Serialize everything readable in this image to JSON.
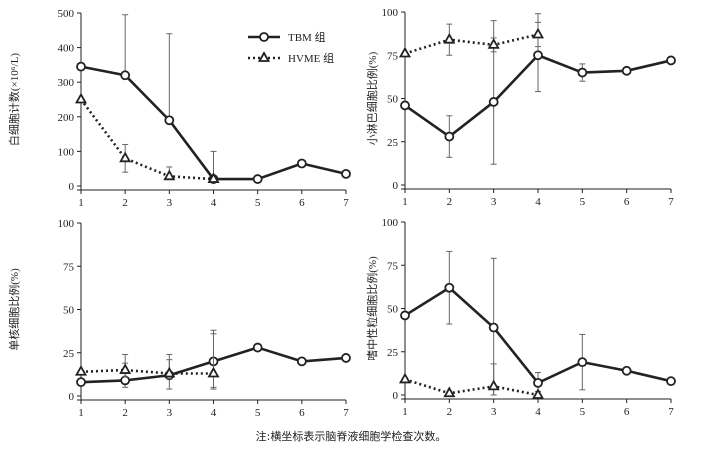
{
  "chart_data": [
    {
      "type": "line",
      "ylabel": "白细胞计数(×10⁶/L)",
      "ylim": [
        0,
        500
      ],
      "yticks": [
        0,
        100,
        200,
        300,
        400,
        500
      ],
      "x": [
        1,
        2,
        3,
        4,
        5,
        6,
        7
      ],
      "series": [
        {
          "name": "TBM 组",
          "x": [
            1,
            2,
            3,
            4,
            5,
            6,
            7
          ],
          "values": [
            345,
            320,
            190,
            20,
            20,
            65,
            35
          ],
          "err_low": [
            null,
            null,
            null,
            null,
            null,
            null,
            null
          ],
          "err_high": [
            null,
            495,
            440,
            100,
            null,
            null,
            null
          ]
        },
        {
          "name": "HVME 组",
          "x": [
            1,
            2,
            3,
            4
          ],
          "values": [
            250,
            80,
            28,
            20
          ],
          "err_low": [
            null,
            40,
            null,
            null
          ],
          "err_high": [
            null,
            120,
            55,
            null
          ]
        }
      ]
    },
    {
      "type": "line",
      "ylabel": "小淋巴细胞比例(%)",
      "ylim": [
        0,
        100
      ],
      "yticks": [
        0,
        25,
        50,
        75,
        100
      ],
      "x": [
        1,
        2,
        3,
        4,
        5,
        6,
        7
      ],
      "series": [
        {
          "name": "TBM 组",
          "x": [
            1,
            2,
            3,
            4,
            5,
            6,
            7
          ],
          "values": [
            46,
            28,
            48,
            75,
            65,
            66,
            72
          ],
          "err_low": [
            null,
            16,
            12,
            54,
            60,
            null,
            null
          ],
          "err_high": [
            null,
            40,
            95,
            99,
            70,
            null,
            null
          ]
        },
        {
          "name": "HVME 组",
          "x": [
            1,
            2,
            3,
            4
          ],
          "values": [
            76,
            84,
            81,
            87
          ],
          "err_low": [
            null,
            75,
            77,
            80
          ],
          "err_high": [
            null,
            93,
            85,
            94
          ]
        }
      ]
    },
    {
      "type": "line",
      "ylabel": "单核细胞比例(%)",
      "ylim": [
        0,
        100
      ],
      "yticks": [
        0,
        25,
        50,
        75,
        100
      ],
      "x": [
        1,
        2,
        3,
        4,
        5,
        6,
        7
      ],
      "series": [
        {
          "name": "TBM 组",
          "x": [
            1,
            2,
            3,
            4,
            5,
            6,
            7
          ],
          "values": [
            8,
            9,
            12,
            20,
            28,
            20,
            22
          ],
          "err_low": [
            null,
            5,
            4,
            4,
            null,
            null,
            null
          ],
          "err_high": [
            null,
            24,
            24,
            38,
            null,
            null,
            null
          ]
        },
        {
          "name": "HVME 组",
          "x": [
            1,
            2,
            3,
            4
          ],
          "values": [
            14,
            15,
            13,
            13
          ],
          "err_low": [
            null,
            11,
            10,
            5
          ],
          "err_high": [
            null,
            19,
            21,
            36
          ]
        }
      ]
    },
    {
      "type": "line",
      "ylabel": "嗜中性粒细胞比例(%)",
      "ylim": [
        0,
        100
      ],
      "yticks": [
        0,
        25,
        50,
        75,
        100
      ],
      "x": [
        1,
        2,
        3,
        4,
        5,
        6,
        7
      ],
      "series": [
        {
          "name": "TBM 组",
          "x": [
            1,
            2,
            3,
            4,
            5,
            6,
            7
          ],
          "values": [
            46,
            62,
            39,
            7,
            19,
            14,
            8
          ],
          "err_low": [
            null,
            41,
            0,
            2,
            3,
            null,
            null
          ],
          "err_high": [
            null,
            83,
            79,
            13,
            35,
            null,
            null
          ]
        },
        {
          "name": "HVME 组",
          "x": [
            1,
            2,
            3,
            4
          ],
          "values": [
            9,
            1,
            5,
            0
          ],
          "err_low": [
            null,
            null,
            0,
            null
          ],
          "err_high": [
            null,
            null,
            18,
            null
          ]
        }
      ]
    }
  ],
  "legend": {
    "series1": "TBM 组",
    "series2": "HVME 组"
  },
  "note": "注:横坐标表示脑脊液细胞学检查次数。"
}
